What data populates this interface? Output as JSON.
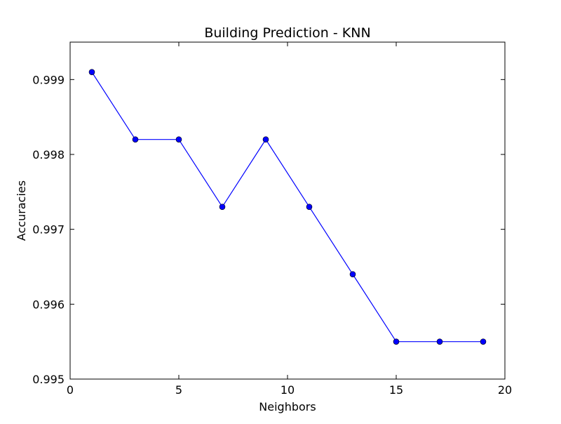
{
  "chart_data": {
    "type": "line",
    "title": "Building Prediction - KNN",
    "xlabel": "Neighbors",
    "ylabel": "Accuracies",
    "xlim": [
      0,
      20
    ],
    "ylim": [
      0.995,
      0.9995
    ],
    "xticks": [
      0,
      5,
      10,
      15,
      20
    ],
    "xtick_labels": [
      "0",
      "5",
      "10",
      "15",
      "20"
    ],
    "yticks": [
      0.995,
      0.996,
      0.997,
      0.998,
      0.999
    ],
    "ytick_labels": [
      "0.995",
      "0.996",
      "0.997",
      "0.998",
      "0.999"
    ],
    "grid": false,
    "series": [
      {
        "x": [
          1,
          3,
          5,
          7,
          9,
          11,
          13,
          15,
          17,
          19
        ],
        "values": [
          0.9991,
          0.9982,
          0.9982,
          0.9973,
          0.9982,
          0.9973,
          0.9964,
          0.9955,
          0.9955,
          0.9955
        ],
        "color": "#0000ff",
        "marker": "circle"
      }
    ]
  }
}
